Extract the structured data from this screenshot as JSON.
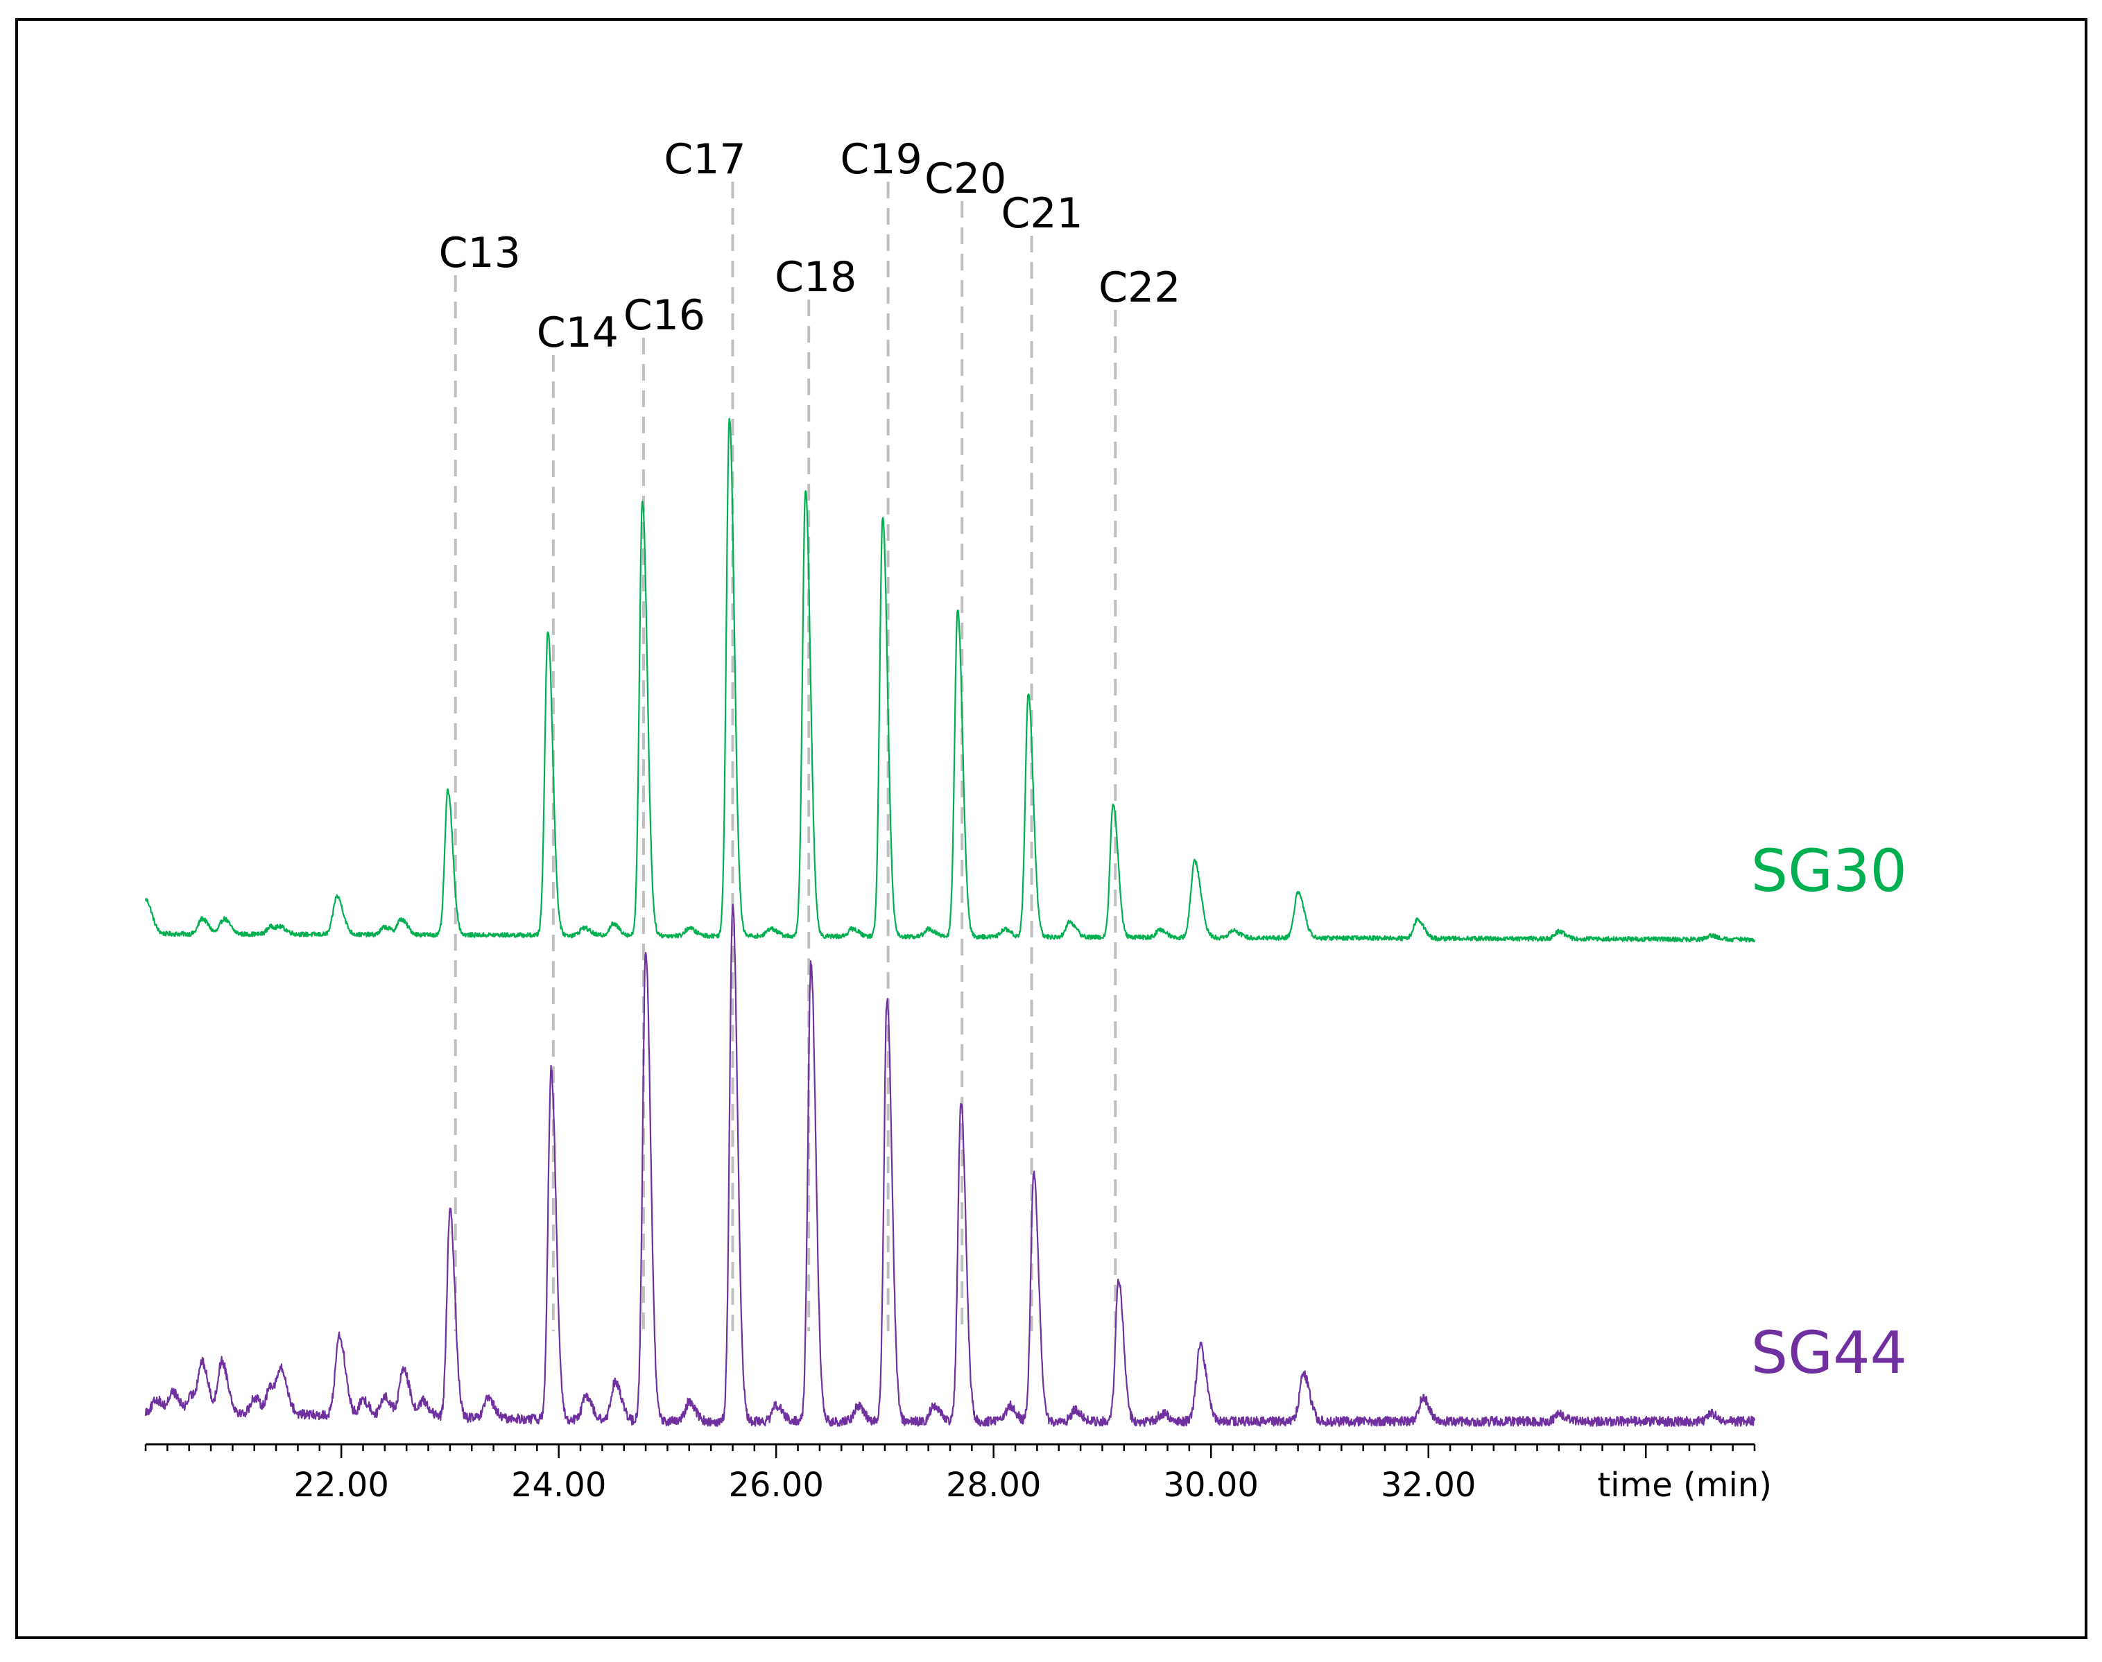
{
  "chart_data": {
    "type": "line",
    "title": "",
    "xlabel": "time (min)",
    "ylabel": "",
    "xlim": [
      20.2,
      35.0
    ],
    "x_ticks": [
      22.0,
      24.0,
      26.0,
      28.0,
      30.0,
      32.0
    ],
    "x_tick_labels": [
      "22.00",
      "24.00",
      "26.00",
      "28.00",
      "30.00",
      "32.00"
    ],
    "grid": false,
    "axes": {
      "y_axis_visible": false,
      "x_axis_visible": true
    },
    "legend": "series labels at right end of each trace",
    "series": [
      {
        "name": "SG30",
        "color": "#00b050",
        "baseline": 0.0,
        "peaks": [
          {
            "x": 20.2,
            "y": 0.09
          },
          {
            "x": 20.72,
            "y": 0.04
          },
          {
            "x": 20.92,
            "y": 0.04
          },
          {
            "x": 21.35,
            "y": 0.02
          },
          {
            "x": 21.45,
            "y": 0.015
          },
          {
            "x": 21.96,
            "y": 0.1
          },
          {
            "x": 22.4,
            "y": 0.02
          },
          {
            "x": 22.55,
            "y": 0.04
          },
          {
            "x": 22.98,
            "y": 0.38
          },
          {
            "x": 23.9,
            "y": 0.8
          },
          {
            "x": 24.23,
            "y": 0.02
          },
          {
            "x": 24.5,
            "y": 0.03
          },
          {
            "x": 24.77,
            "y": 1.14
          },
          {
            "x": 25.2,
            "y": 0.02
          },
          {
            "x": 25.57,
            "y": 1.36
          },
          {
            "x": 25.95,
            "y": 0.02
          },
          {
            "x": 26.27,
            "y": 1.17
          },
          {
            "x": 26.7,
            "y": 0.02
          },
          {
            "x": 26.98,
            "y": 1.1
          },
          {
            "x": 27.4,
            "y": 0.02
          },
          {
            "x": 27.67,
            "y": 0.86
          },
          {
            "x": 28.1,
            "y": 0.02
          },
          {
            "x": 28.32,
            "y": 0.64
          },
          {
            "x": 28.7,
            "y": 0.04
          },
          {
            "x": 29.1,
            "y": 0.35
          },
          {
            "x": 29.53,
            "y": 0.02
          },
          {
            "x": 29.85,
            "y": 0.2
          },
          {
            "x": 30.2,
            "y": 0.02
          },
          {
            "x": 30.8,
            "y": 0.12
          },
          {
            "x": 31.9,
            "y": 0.05
          },
          {
            "x": 33.2,
            "y": 0.02
          },
          {
            "x": 34.6,
            "y": 0.01
          }
        ]
      },
      {
        "name": "SG44",
        "color": "#7030a0",
        "baseline": 0.0,
        "peaks": [
          {
            "x": 20.3,
            "y": 0.03
          },
          {
            "x": 20.45,
            "y": 0.05
          },
          {
            "x": 20.62,
            "y": 0.04
          },
          {
            "x": 20.72,
            "y": 0.12
          },
          {
            "x": 20.9,
            "y": 0.13
          },
          {
            "x": 21.2,
            "y": 0.04
          },
          {
            "x": 21.35,
            "y": 0.07
          },
          {
            "x": 21.45,
            "y": 0.1
          },
          {
            "x": 21.98,
            "y": 0.2
          },
          {
            "x": 22.2,
            "y": 0.04
          },
          {
            "x": 22.4,
            "y": 0.05
          },
          {
            "x": 22.57,
            "y": 0.12
          },
          {
            "x": 22.75,
            "y": 0.04
          },
          {
            "x": 23.0,
            "y": 0.52
          },
          {
            "x": 23.35,
            "y": 0.05
          },
          {
            "x": 23.93,
            "y": 0.88
          },
          {
            "x": 24.25,
            "y": 0.06
          },
          {
            "x": 24.52,
            "y": 0.1
          },
          {
            "x": 24.8,
            "y": 1.18
          },
          {
            "x": 25.2,
            "y": 0.05
          },
          {
            "x": 25.6,
            "y": 1.3
          },
          {
            "x": 26.0,
            "y": 0.04
          },
          {
            "x": 26.32,
            "y": 1.15
          },
          {
            "x": 26.75,
            "y": 0.04
          },
          {
            "x": 27.02,
            "y": 1.06
          },
          {
            "x": 27.45,
            "y": 0.04
          },
          {
            "x": 27.7,
            "y": 0.8
          },
          {
            "x": 28.15,
            "y": 0.04
          },
          {
            "x": 28.37,
            "y": 0.62
          },
          {
            "x": 28.75,
            "y": 0.03
          },
          {
            "x": 29.15,
            "y": 0.36
          },
          {
            "x": 29.55,
            "y": 0.02
          },
          {
            "x": 29.9,
            "y": 0.19
          },
          {
            "x": 30.85,
            "y": 0.12
          },
          {
            "x": 31.95,
            "y": 0.06
          },
          {
            "x": 33.2,
            "y": 0.02
          },
          {
            "x": 34.6,
            "y": 0.02
          }
        ]
      }
    ],
    "annotations": [
      {
        "label": "C13",
        "x": 23.05
      },
      {
        "label": "C14",
        "x": 23.95
      },
      {
        "label": "C16",
        "x": 24.78
      },
      {
        "label": "C17",
        "x": 25.6
      },
      {
        "label": "C18",
        "x": 26.3
      },
      {
        "label": "C19",
        "x": 27.03
      },
      {
        "label": "C20",
        "x": 27.71
      },
      {
        "label": "C21",
        "x": 28.35
      },
      {
        "label": "C22",
        "x": 29.12
      }
    ]
  },
  "style": {
    "annotation_line_color": "#bfbfbf",
    "axis_color": "#000000",
    "text_color": "#000000",
    "frame_color": "#000000"
  }
}
